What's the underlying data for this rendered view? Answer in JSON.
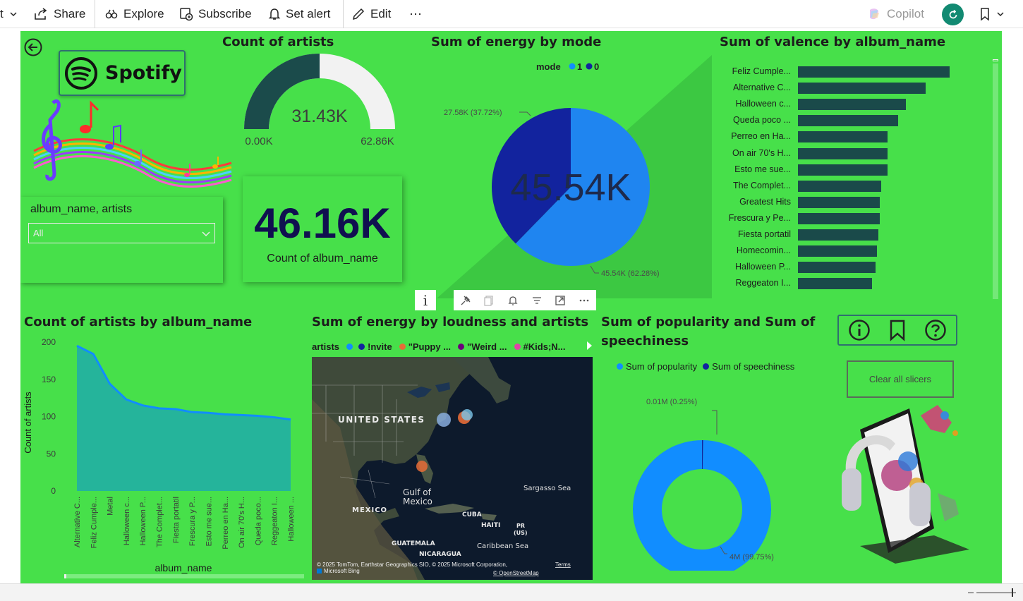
{
  "toolbar": {
    "share": "Share",
    "explore": "Explore",
    "subscribe": "Subscribe",
    "set_alert": "Set alert",
    "edit": "Edit",
    "more": "⋯",
    "copilot": "Copilot"
  },
  "logo": {
    "text": "Spotify"
  },
  "slicer": {
    "title": "album_name, artists",
    "selected": "All"
  },
  "gauge": {
    "title": "Count of artists",
    "value_label": "31.43K",
    "min_label": "0.00K",
    "max_label": "62.86K",
    "value": 31430,
    "min": 0,
    "max": 62860
  },
  "kpi": {
    "value": "46.16K",
    "label": "Count of album_name"
  },
  "pie": {
    "title": "Sum of energy by mode",
    "legend_title": "mode",
    "legend": [
      {
        "name": "1",
        "color": "#118dff"
      },
      {
        "name": "0",
        "color": "#12239e"
      }
    ],
    "center_label": "45.54K",
    "label_a": "27.58K (37.72%)",
    "label_b": "45.54K (62.28%)",
    "share_a": 37.72,
    "colors": {
      "a": "#12239e",
      "b": "#1f85f0"
    }
  },
  "valence": {
    "title": "Sum of valence by album_name",
    "rows": [
      {
        "label": "Feliz Cumple...",
        "value": 100
      },
      {
        "label": "Alternative C...",
        "value": 84
      },
      {
        "label": "Halloween c...",
        "value": 71
      },
      {
        "label": "Queda poco ...",
        "value": 66
      },
      {
        "label": "Perreo en Ha...",
        "value": 59
      },
      {
        "label": "On air 70's H...",
        "value": 59
      },
      {
        "label": "Esto me sue...",
        "value": 59
      },
      {
        "label": "The Complet...",
        "value": 55
      },
      {
        "label": "Greatest Hits",
        "value": 54
      },
      {
        "label": "Frescura y Pe...",
        "value": 54
      },
      {
        "label": "Fiesta portatil",
        "value": 53
      },
      {
        "label": "Homecomin...",
        "value": 52
      },
      {
        "label": "Halloween P...",
        "value": 51
      },
      {
        "label": "Reggeaton I...",
        "value": 49
      }
    ],
    "bar_color": "#1a4a4a"
  },
  "visual_header": {
    "info": "i"
  },
  "area": {
    "title": "Count of artists by album_name",
    "xlabel": "album_name",
    "ylabel": "Count of artists",
    "yticks": [
      "200",
      "150",
      "100",
      "50",
      "0"
    ]
  },
  "chart_data": {
    "type": "area",
    "title": "Count of artists by album_name",
    "xlabel": "album_name",
    "ylabel": "Count of artists",
    "ylim": [
      0,
      200
    ],
    "categories": [
      "Alternative C...",
      "Feliz Cumple...",
      "Metal",
      "Halloween c...",
      "Halloween P...",
      "The Complet...",
      "Fiesta portatil",
      "Frescura y P...",
      "Esto me sue...",
      "Perreo en Ha...",
      "On air 70's H...",
      "Queda poco...",
      "Reggeaton I...",
      "Halloween ..."
    ],
    "values": [
      195,
      184,
      144,
      123,
      115,
      111,
      110,
      106,
      105,
      103,
      102,
      101,
      99,
      96
    ]
  },
  "map": {
    "title": "Sum of energy by loudness and artists",
    "legend_title": "artists",
    "legend": [
      {
        "name": "!nvite",
        "color": "#12239e"
      },
      {
        "name": "\"Puppy ...",
        "color": "#e66c37"
      },
      {
        "name": "\"Weird ...",
        "color": "#6b007b"
      },
      {
        "name": "#Kids;N...",
        "color": "#e044a7"
      }
    ],
    "labels": {
      "us": "UNITED STATES",
      "gulf": "Gulf of Mexico",
      "mexico": "MEXICO",
      "cuba": "CUBA",
      "haiti": "HAITI",
      "pr": "PR (US)",
      "sargasso": "Sargasso Sea",
      "guatemala": "GUATEMALA",
      "nicaragua": "NICARAGUA",
      "caribbean": "Caribbean Sea"
    },
    "attribution": "© 2025 TomTom, Earthstar Geographics SIO, © 2025 Microsoft Corporation,",
    "terms": "Terms",
    "bing": "Microsoft Bing",
    "osm": "© OpenStreetMap"
  },
  "donut": {
    "title_line1": "Sum of popularity and Sum of",
    "title_line2": "speechiness",
    "legend": [
      {
        "name": "Sum of popularity",
        "color": "#118dff"
      },
      {
        "name": "Sum of speechiness",
        "color": "#12239e"
      }
    ],
    "label_small": "0.01M (0.25%)",
    "label_big": "4M (99.75%)",
    "share_small": 0.25
  },
  "clear_button": {
    "label": "Clear all slicers"
  }
}
